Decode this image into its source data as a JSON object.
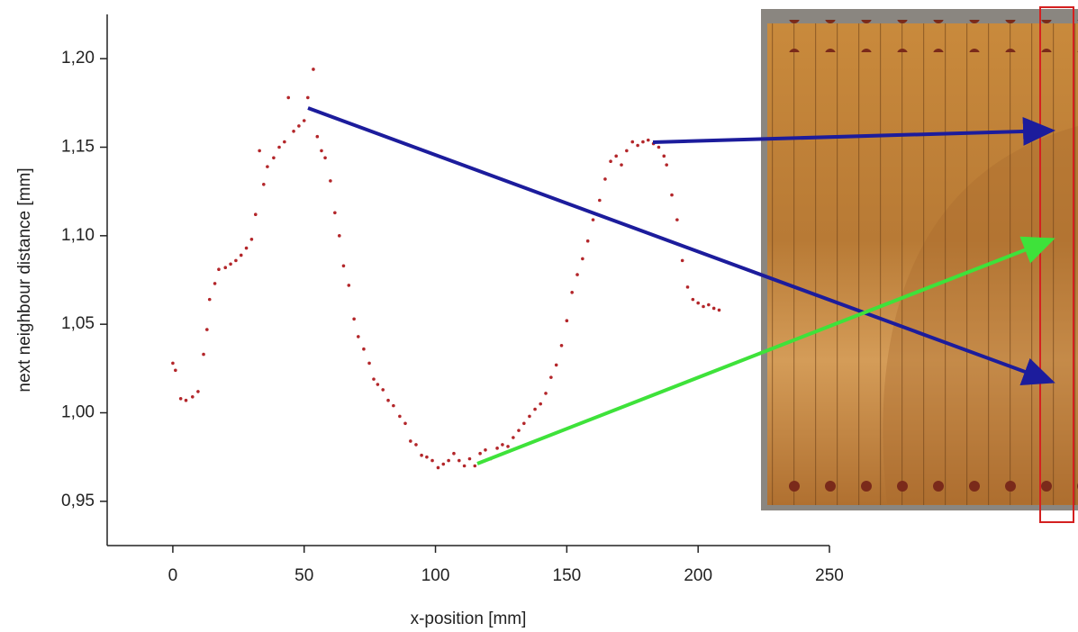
{
  "chart_data": {
    "type": "scatter",
    "x_label": "x-position [mm]",
    "y_label": "next neighbour distance [mm]",
    "color": "#b3262a",
    "x": [
      0,
      1,
      3,
      5,
      7.5,
      9.6,
      11.7,
      13,
      14,
      16,
      17.5,
      20,
      22,
      24,
      26,
      28,
      30,
      31.5,
      33,
      34.6,
      36,
      38.4,
      40.5,
      42.5,
      44,
      46,
      48,
      50,
      51.4,
      53.5,
      55,
      56.6,
      58,
      60,
      61.7,
      63.4,
      65,
      67,
      69,
      70.6,
      72.7,
      74.8,
      76.5,
      78,
      80,
      82,
      84,
      86.4,
      88.5,
      90.5,
      92.6,
      94.7,
      96.7,
      98.8,
      101,
      103,
      105,
      107,
      109,
      111,
      113,
      115,
      117,
      119,
      121,
      123.5,
      125.5,
      127.6,
      129.6,
      131.7,
      133.7,
      135.8,
      137.9,
      140,
      142,
      144,
      146,
      148,
      150,
      152,
      154,
      156,
      158,
      160,
      162.5,
      164.6,
      166.7,
      168.8,
      170.8,
      172.8,
      175,
      177,
      179,
      181,
      183,
      185,
      187,
      188,
      190,
      192,
      194,
      196,
      198,
      200,
      202,
      204,
      206,
      208
    ],
    "values": [
      1.028,
      1.024,
      1.008,
      1.007,
      1.009,
      1.012,
      1.033,
      1.047,
      1.064,
      1.073,
      1.081,
      1.082,
      1.084,
      1.086,
      1.089,
      1.093,
      1.098,
      1.112,
      1.148,
      1.129,
      1.139,
      1.144,
      1.15,
      1.153,
      1.178,
      1.159,
      1.162,
      1.165,
      1.178,
      1.194,
      1.156,
      1.148,
      1.144,
      1.131,
      1.113,
      1.1,
      1.083,
      1.072,
      1.053,
      1.043,
      1.036,
      1.028,
      1.019,
      1.016,
      1.013,
      1.007,
      1.004,
      0.998,
      0.994,
      0.984,
      0.982,
      0.976,
      0.975,
      0.973,
      0.969,
      0.971,
      0.973,
      0.977,
      0.973,
      0.97,
      0.974,
      0.97,
      0.977,
      0.979,
      0.974,
      0.98,
      0.982,
      0.981,
      0.986,
      0.99,
      0.994,
      0.998,
      1.002,
      1.005,
      1.011,
      1.02,
      1.027,
      1.038,
      1.052,
      1.068,
      1.078,
      1.087,
      1.097,
      1.109,
      1.12,
      1.132,
      1.142,
      1.145,
      1.14,
      1.148,
      1.153,
      1.151,
      1.153,
      1.154,
      1.152,
      1.15,
      1.145,
      1.14,
      1.123,
      1.109,
      1.086,
      1.071,
      1.064,
      1.062,
      1.06,
      1.061,
      1.059,
      1.058
    ],
    "xlim": [
      -25,
      250
    ],
    "xticks": [
      0,
      50,
      100,
      150,
      200,
      250
    ],
    "ylim": [
      0.925,
      1.225
    ],
    "yticks": [
      {
        "value": 0.95,
        "label": "0,95"
      },
      {
        "value": 1.0,
        "label": "1,00"
      },
      {
        "value": 1.05,
        "label": "1,05"
      },
      {
        "value": 1.1,
        "label": "1,10"
      },
      {
        "value": 1.15,
        "label": "1,15"
      },
      {
        "value": 1.2,
        "label": "1,20"
      }
    ]
  }
}
